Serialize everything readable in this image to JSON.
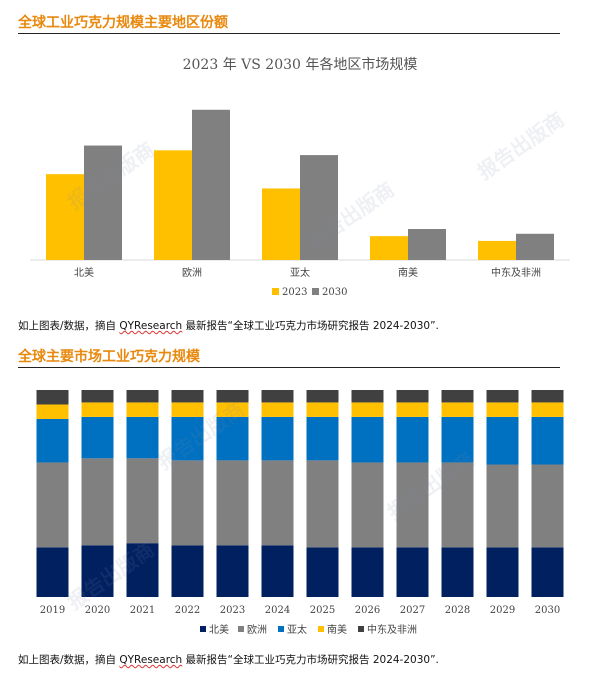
{
  "section1": {
    "title": "全球工业巧克力规模主要地区份额",
    "caption_prefix": "如上图表/数据，摘自 ",
    "caption_source": "QYResearch",
    "caption_suffix": " 最新报告“全球工业巧克力市场研究报告 2024-2030”."
  },
  "section2": {
    "title": "全球主要市场工业巧克力规模",
    "caption_prefix": "如上图表/数据，摘自 ",
    "caption_source": "QYResearch",
    "caption_suffix": " 最新报告“全球工业巧克力市场研究报告 2024-2030”."
  },
  "watermark": "报告出版商",
  "chart_data": [
    {
      "type": "bar",
      "title": "2023 年 VS 2030 年各地区市场规模",
      "categories": [
        "北美",
        "欧洲",
        "亚太",
        "南美",
        "中东及非洲"
      ],
      "series": [
        {
          "name": "2023",
          "values": [
            36,
            46,
            30,
            10,
            8
          ],
          "color": "#FFC000"
        },
        {
          "name": "2030",
          "values": [
            48,
            63,
            44,
            13,
            11
          ],
          "color": "#808080"
        }
      ],
      "legend_position": "bottom",
      "grid": false
    },
    {
      "type": "bar",
      "stacked": true,
      "percent": true,
      "categories": [
        "2019",
        "2020",
        "2021",
        "2022",
        "2023",
        "2024",
        "2025",
        "2026",
        "2027",
        "2028",
        "2029",
        "2030"
      ],
      "series": [
        {
          "name": "北美",
          "values": [
            24,
            25,
            26,
            25,
            25,
            25,
            24,
            24,
            24,
            24,
            24,
            24
          ],
          "color": "#002060"
        },
        {
          "name": "欧洲",
          "values": [
            41,
            42,
            41,
            41,
            41,
            41,
            42,
            41,
            41,
            41,
            40,
            40
          ],
          "color": "#808080"
        },
        {
          "name": "亚太",
          "values": [
            21,
            20,
            20,
            21,
            21,
            21,
            21,
            22,
            22,
            22,
            23,
            23
          ],
          "color": "#0070C0"
        },
        {
          "name": "南美",
          "values": [
            7,
            7,
            7,
            7,
            7,
            7,
            7,
            7,
            7,
            7,
            7,
            7
          ],
          "color": "#FFC000"
        },
        {
          "name": "中东及非洲",
          "values": [
            7,
            6,
            6,
            6,
            6,
            6,
            6,
            6,
            6,
            6,
            6,
            6
          ],
          "color": "#404040"
        }
      ],
      "legend_position": "bottom",
      "grid": false
    }
  ]
}
